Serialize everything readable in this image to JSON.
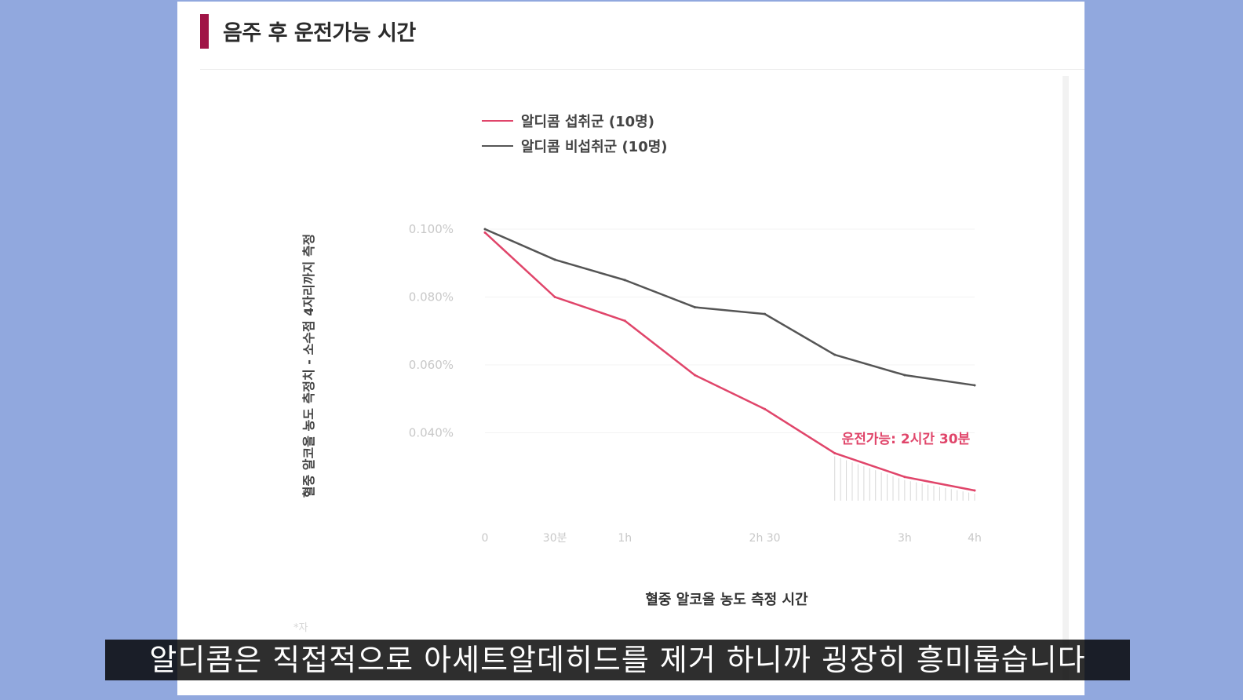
{
  "slide": {
    "title": "음주 후 운전가능 시간",
    "footnote": "*자"
  },
  "subtitle": "알디콤은 직접적으로 아세트알데히드를 제거 하니까 굉장히 흥미롭습니다",
  "colors": {
    "background": "#91a8de",
    "accent": "#a01446",
    "series_intake": "#e0456a",
    "series_non_intake": "#555555"
  },
  "chart_data": {
    "type": "line",
    "xlabel": "혈중 알코올 농도 측정 시간",
    "ylabel": "혈중 알코올 농도 측정치 - 소수점 4자리까지 측정",
    "x": [
      0,
      1,
      2,
      3,
      4,
      5,
      6,
      7
    ],
    "x_tick_labels": [
      "0",
      "30분",
      "1h",
      "2h 30",
      "3h",
      "4h"
    ],
    "x_tick_positions": [
      0,
      1,
      2,
      4,
      6,
      7
    ],
    "y_tick_labels": [
      "0.100%",
      "0.080%",
      "0.060%",
      "0.040%"
    ],
    "y_tick_values": [
      0.1,
      0.08,
      0.06,
      0.04
    ],
    "ylim": [
      0.02,
      0.1
    ],
    "series": [
      {
        "name": "알디콤 섭취군 (10명)",
        "values": [
          0.099,
          0.08,
          0.073,
          0.057,
          0.047,
          0.034,
          0.027,
          0.023
        ]
      },
      {
        "name": "알디콤 비섭취군 (10명)",
        "values": [
          0.1,
          0.091,
          0.085,
          0.077,
          0.075,
          0.063,
          0.057,
          0.054
        ]
      }
    ],
    "annotations": [
      {
        "text": "운전가능: 2시간 30분",
        "x": 5.1,
        "y": 0.035
      }
    ],
    "legend_position": "top"
  }
}
